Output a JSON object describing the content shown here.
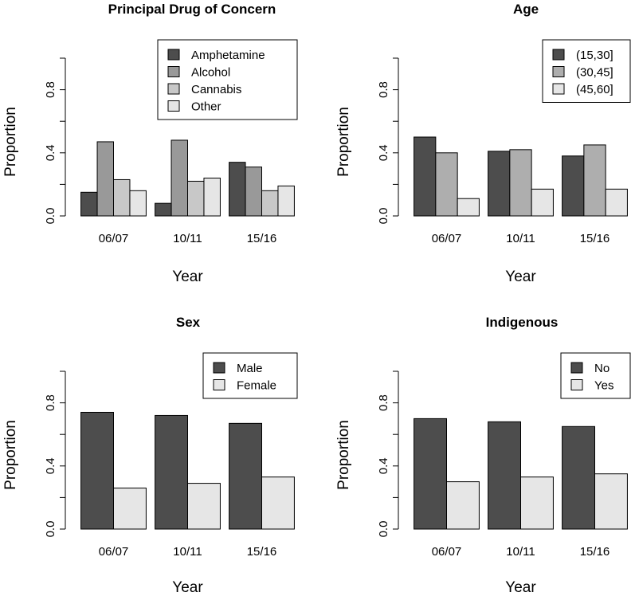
{
  "chart_data": [
    {
      "type": "bar",
      "title": "Principal Drug of Concern",
      "xlabel": "Year",
      "ylabel": "Proportion",
      "ylim": [
        0,
        1
      ],
      "yticks": [
        "0.0",
        "0.4",
        "0.8"
      ],
      "categories": [
        "06/07",
        "10/11",
        "15/16"
      ],
      "legend_position": "top-right",
      "series": [
        {
          "name": "Amphetamine",
          "color": "#4d4d4d",
          "values": [
            0.15,
            0.08,
            0.34
          ]
        },
        {
          "name": "Alcohol",
          "color": "#999999",
          "values": [
            0.47,
            0.48,
            0.31
          ]
        },
        {
          "name": "Cannabis",
          "color": "#c8c8c8",
          "values": [
            0.23,
            0.22,
            0.16
          ]
        },
        {
          "name": "Other",
          "color": "#e6e6e6",
          "values": [
            0.16,
            0.24,
            0.19
          ]
        }
      ]
    },
    {
      "type": "bar",
      "title": "Age",
      "xlabel": "Year",
      "ylabel": "Proportion",
      "ylim": [
        0,
        1
      ],
      "yticks": [
        "0.0",
        "0.4",
        "0.8"
      ],
      "categories": [
        "06/07",
        "10/11",
        "15/16"
      ],
      "legend_position": "top-right",
      "series": [
        {
          "name": "(15,30]",
          "color": "#4d4d4d",
          "values": [
            0.5,
            0.41,
            0.38
          ]
        },
        {
          "name": "(30,45]",
          "color": "#aeaeae",
          "values": [
            0.4,
            0.42,
            0.45
          ]
        },
        {
          "name": "(45,60]",
          "color": "#e6e6e6",
          "values": [
            0.11,
            0.17,
            0.17
          ]
        }
      ]
    },
    {
      "type": "bar",
      "title": "Sex",
      "xlabel": "Year",
      "ylabel": "Proportion",
      "ylim": [
        0,
        1
      ],
      "yticks": [
        "0.0",
        "0.4",
        "0.8"
      ],
      "categories": [
        "06/07",
        "10/11",
        "15/16"
      ],
      "legend_position": "top-right",
      "series": [
        {
          "name": "Male",
          "color": "#4d4d4d",
          "values": [
            0.74,
            0.72,
            0.67
          ]
        },
        {
          "name": "Female",
          "color": "#e6e6e6",
          "values": [
            0.26,
            0.29,
            0.33
          ]
        }
      ]
    },
    {
      "type": "bar",
      "title": "Indigenous",
      "xlabel": "Year",
      "ylabel": "Proportion",
      "ylim": [
        0,
        1
      ],
      "yticks": [
        "0.0",
        "0.4",
        "0.8"
      ],
      "categories": [
        "06/07",
        "10/11",
        "15/16"
      ],
      "legend_position": "top-right",
      "series": [
        {
          "name": "No",
          "color": "#4d4d4d",
          "values": [
            0.7,
            0.68,
            0.65
          ]
        },
        {
          "name": "Yes",
          "color": "#e6e6e6",
          "values": [
            0.3,
            0.33,
            0.35
          ]
        }
      ]
    }
  ]
}
